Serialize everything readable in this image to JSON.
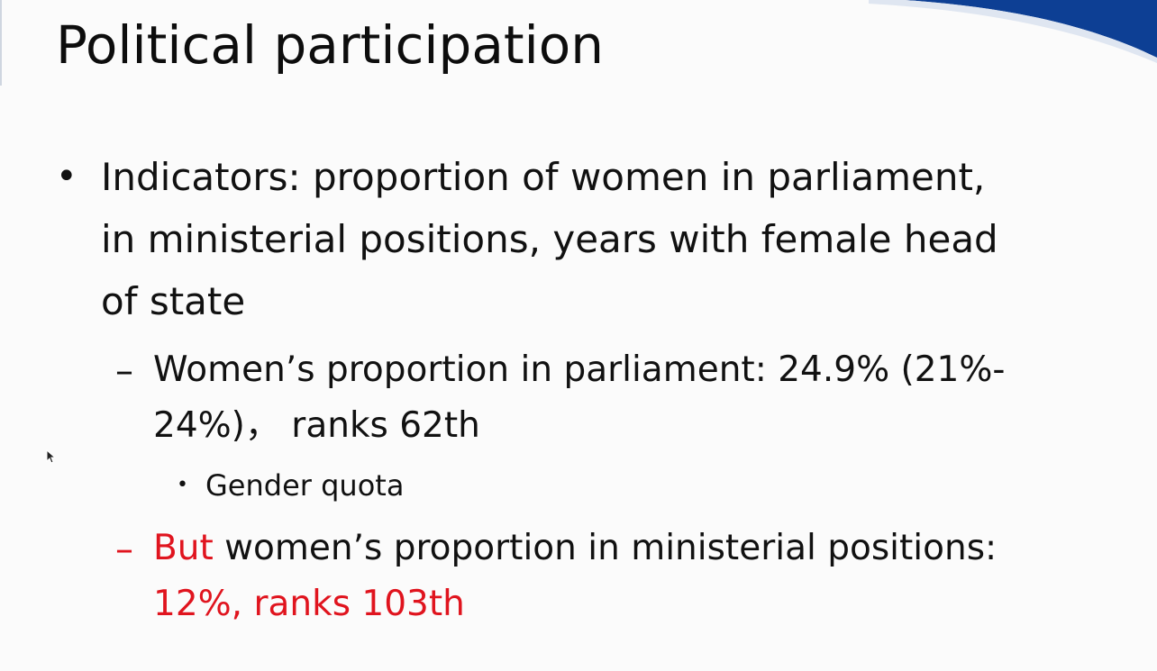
{
  "slide": {
    "title": "Political participation",
    "bullet1": {
      "lines": [
        "Indicators: proportion of women in parliament,",
        "in ministerial positions, years with female head",
        "of state"
      ]
    },
    "sub1": {
      "lines": [
        "Women’s proportion in parliament: 24.9% (21%-",
        "24%)， ranks 62th"
      ]
    },
    "sub1_child": {
      "text": "Gender quota"
    },
    "sub2": {
      "lead": "But",
      "rest": " women’s proportion in ministerial positions:",
      "line2": "12%, ranks 103th"
    }
  },
  "colors": {
    "accent_red": "#e0141e",
    "swoosh_blue": "#0d3f94"
  }
}
